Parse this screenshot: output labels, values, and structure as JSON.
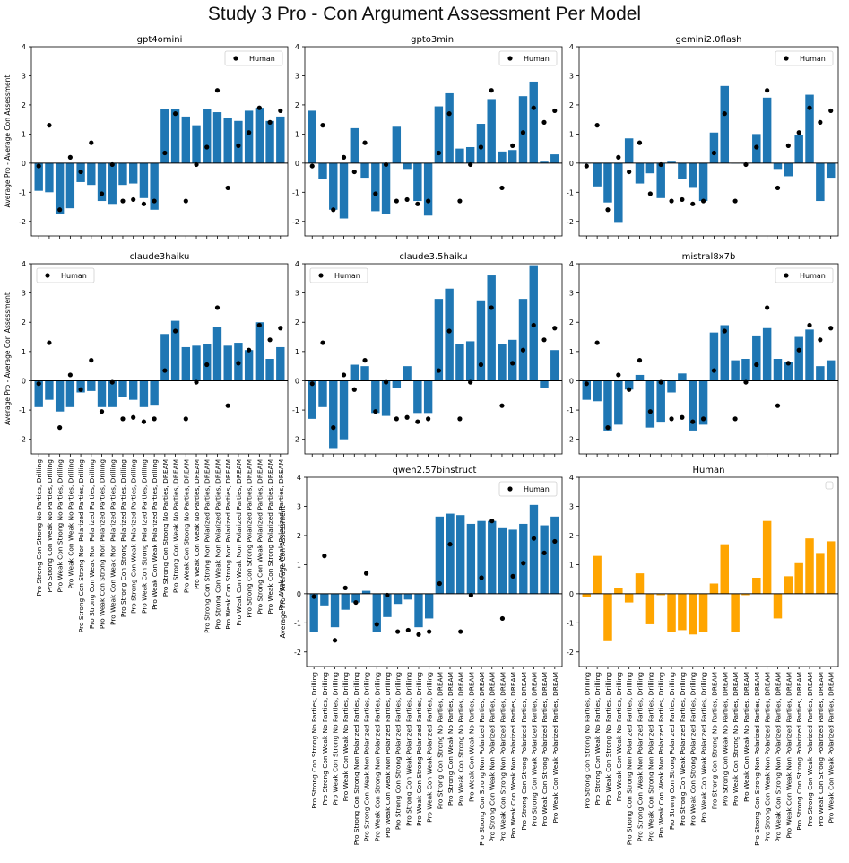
{
  "figure": {
    "title": "Study 3 Pro - Con Argument Assessment Per Model"
  },
  "colors": {
    "model_bar": "#1f77b4",
    "human_bar": "#ffa500",
    "human_point": "#000000"
  },
  "categories": [
    "Pro Strong Con Strong No Parties, Drilling",
    "Pro Strong Con Weak No Parties, Drilling",
    "Pro Weak Con Strong No Parties, Drilling",
    "Pro Weak Con Weak No Parties, Drilling",
    "Pro Strong Con Strong Non Polarized Parties, Drilling",
    "Pro Strong Con Weak Non Polarized Parties, Drilling",
    "Pro Weak Con Strong Non Polarized Parties, Drilling",
    "Pro Weak Con Weak Non Polarized Parties, Drilling",
    "Pro Strong Con Strong Polarized Parties, Drilling",
    "Pro Strong Con Weak Polarized Parties, Drilling",
    "Pro Weak Con Strong Polarized Parties, Drilling",
    "Pro Weak Con Weak Polarized Parties, Drilling",
    "Pro Strong Con Strong No Parties, DREAM",
    "Pro Strong Con Weak No Parties, DREAM",
    "Pro Weak Con Strong No Parties, DREAM",
    "Pro Weak Con Weak No Parties, DREAM",
    "Pro Strong Con Strong Non Polarized Parties, DREAM",
    "Pro Strong Con Weak Non Polarized Parties, DREAM",
    "Pro Weak Con Strong Non Polarized Parties, DREAM",
    "Pro Weak Con Weak Non Polarized Parties, DREAM",
    "Pro Strong Con Strong Polarized Parties, DREAM",
    "Pro Strong Con Weak Polarized Parties, DREAM",
    "Pro Weak Con Strong Polarized Parties, DREAM",
    "Pro Weak Con Weak Polarized Parties, DREAM"
  ],
  "chart_data": [
    {
      "type": "bar",
      "title": "gpt4omini",
      "ylabel": "Average Pro - Average Con Assessment",
      "xlabel": "",
      "ylim": [
        -2.5,
        4
      ],
      "yticks": [
        -2,
        -1,
        0,
        1,
        2,
        3,
        4
      ],
      "legend": "Human",
      "legend_position": "top-right",
      "show_x_labels": false,
      "values": [
        -0.95,
        -1.0,
        -1.75,
        -1.55,
        -0.65,
        -0.75,
        -1.3,
        -1.4,
        -0.75,
        -0.7,
        -1.2,
        -1.6,
        1.85,
        1.85,
        1.6,
        1.3,
        1.85,
        1.75,
        1.55,
        1.45,
        1.8,
        1.9,
        1.45,
        1.6
      ]
    },
    {
      "type": "bar",
      "title": "gpto3mini",
      "ylabel": "",
      "xlabel": "",
      "ylim": [
        -2.5,
        4
      ],
      "yticks": [
        -2,
        -1,
        0,
        1,
        2,
        3,
        4
      ],
      "legend": "Human",
      "legend_position": "top-right",
      "show_x_labels": false,
      "values": [
        1.8,
        -0.55,
        -1.6,
        -1.9,
        1.2,
        -0.5,
        -1.65,
        -1.75,
        1.25,
        -0.2,
        -1.3,
        -1.8,
        1.95,
        2.4,
        0.5,
        0.55,
        1.35,
        2.2,
        0.4,
        0.45,
        2.3,
        2.8,
        0.05,
        0.3
      ]
    },
    {
      "type": "bar",
      "title": "gemini2.0flash",
      "ylabel": "",
      "xlabel": "",
      "ylim": [
        -2.5,
        4
      ],
      "yticks": [
        -2,
        -1,
        0,
        1,
        2,
        3,
        4
      ],
      "legend": "Human",
      "legend_position": "top-right",
      "show_x_labels": false,
      "values": [
        0.0,
        -0.8,
        -1.35,
        -2.05,
        0.85,
        -0.7,
        -0.35,
        -1.2,
        0.05,
        -0.55,
        -0.85,
        -1.3,
        1.05,
        2.65,
        0.0,
        0.0,
        1.0,
        2.25,
        -0.2,
        -0.45,
        0.95,
        2.35,
        -1.3,
        -0.5
      ]
    },
    {
      "type": "bar",
      "title": "claude3haiku",
      "ylabel": "Average Pro - Average Con Assessment",
      "xlabel": "",
      "ylim": [
        -2.5,
        4
      ],
      "yticks": [
        -2,
        -1,
        0,
        1,
        2,
        3,
        4
      ],
      "legend": "Human",
      "legend_position": "top-left",
      "show_x_labels": true,
      "values": [
        -0.9,
        -0.65,
        -1.05,
        -0.9,
        -0.4,
        -0.35,
        -0.9,
        -0.9,
        -0.55,
        -0.65,
        -0.9,
        -0.85,
        1.6,
        2.05,
        1.15,
        1.2,
        1.25,
        1.85,
        1.2,
        1.3,
        1.05,
        2.0,
        0.75,
        1.15
      ]
    },
    {
      "type": "bar",
      "title": "claude3.5haiku",
      "ylabel": "",
      "xlabel": "",
      "ylim": [
        -2.5,
        4
      ],
      "yticks": [
        -2,
        -1,
        0,
        1,
        2,
        3,
        4
      ],
      "legend": "Human",
      "legend_position": "top-left",
      "show_x_labels": false,
      "values": [
        -1.3,
        -0.9,
        -2.3,
        -2.0,
        0.55,
        0.5,
        -1.1,
        -1.2,
        -0.25,
        0.5,
        -1.1,
        -1.1,
        2.8,
        3.15,
        1.25,
        1.35,
        2.75,
        3.6,
        1.25,
        1.4,
        2.8,
        3.95,
        -0.25,
        1.05
      ]
    },
    {
      "type": "bar",
      "title": "mistral8x7b",
      "ylabel": "",
      "xlabel": "",
      "ylim": [
        -2.5,
        4
      ],
      "yticks": [
        -2,
        -1,
        0,
        1,
        2,
        3,
        4
      ],
      "legend": "Human",
      "legend_position": "top-right",
      "show_x_labels": false,
      "values": [
        -0.65,
        -0.7,
        -1.7,
        -1.5,
        -0.3,
        0.2,
        -1.6,
        -1.4,
        -0.4,
        0.25,
        -1.7,
        -1.5,
        1.65,
        1.9,
        0.7,
        0.75,
        1.55,
        1.8,
        0.75,
        0.65,
        1.5,
        1.75,
        0.5,
        0.7
      ]
    },
    {
      "type": "bar",
      "title": "qwen2.57binstruct",
      "ylabel": "Average Pro - Average Con Assessment",
      "xlabel": "",
      "ylim": [
        -2.5,
        4
      ],
      "yticks": [
        -2,
        -1,
        0,
        1,
        2,
        3,
        4
      ],
      "legend": "Human",
      "legend_position": "top-right",
      "show_x_labels": true,
      "values": [
        -1.3,
        -0.4,
        -1.15,
        -0.55,
        -0.3,
        0.1,
        -1.3,
        -0.8,
        -0.35,
        -0.2,
        -1.15,
        -0.85,
        2.65,
        2.75,
        2.7,
        2.4,
        2.5,
        2.5,
        2.25,
        2.2,
        2.4,
        3.05,
        2.35,
        2.65
      ]
    },
    {
      "type": "bar",
      "title": "Human",
      "ylabel": "",
      "xlabel": "",
      "ylim": [
        -2.5,
        4
      ],
      "yticks": [
        -2,
        -1,
        0,
        1,
        2,
        3,
        4
      ],
      "legend": "",
      "legend_position": "top-right",
      "show_x_labels": true,
      "values": [
        -0.1,
        1.3,
        -1.6,
        0.2,
        -0.3,
        0.7,
        -1.05,
        -0.05,
        -1.3,
        -1.25,
        -1.4,
        -1.3,
        0.35,
        1.7,
        -1.3,
        -0.05,
        0.55,
        2.5,
        -0.85,
        0.6,
        1.05,
        1.9,
        1.4,
        1.8
      ]
    }
  ],
  "human_points": [
    -0.1,
    1.3,
    -1.6,
    0.2,
    -0.3,
    0.7,
    -1.05,
    -0.05,
    -1.3,
    -1.25,
    -1.4,
    -1.3,
    0.35,
    1.7,
    -1.3,
    -0.05,
    0.55,
    2.5,
    -0.85,
    0.6,
    1.05,
    1.9,
    1.4,
    1.8
  ]
}
